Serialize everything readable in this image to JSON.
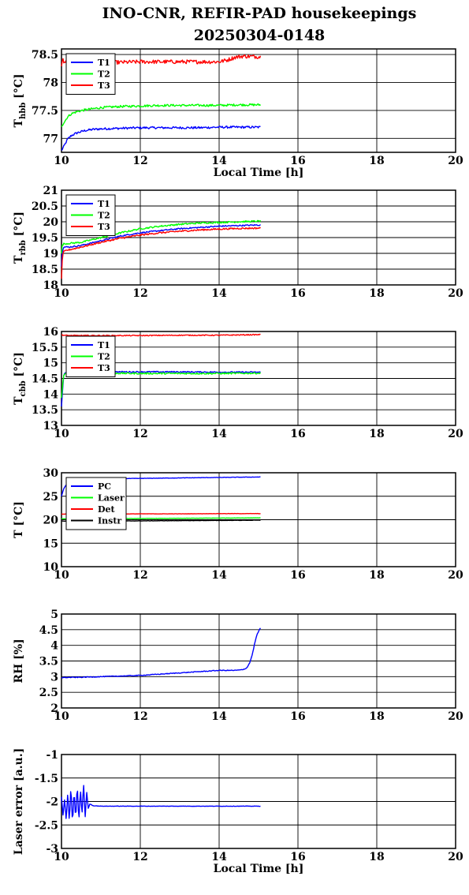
{
  "figure": {
    "title_line1": "INO-CNR, REFIR-PAD housekeepings",
    "title_line2": "20250304-0148"
  },
  "chart_data": [
    {
      "type": "line",
      "xlabel": "Local Time [h]",
      "ylabel": "T",
      "ylabel_sub": "hbb",
      "ylabel_unit": "[°C]",
      "xlim": [
        10,
        20
      ],
      "ylim": [
        76.75,
        78.6
      ],
      "xticks": [
        10,
        12,
        14,
        16,
        18,
        20
      ],
      "yticks": [
        77,
        77.5,
        78,
        78.5
      ],
      "grid": true,
      "legend": "top-left",
      "series": [
        {
          "name": "T1",
          "color": "#0000ff",
          "x": [
            10.0,
            10.08,
            10.15,
            10.25,
            10.4,
            10.6,
            10.8,
            11.0,
            11.5,
            12.0,
            12.5,
            13.0,
            13.5,
            14.0,
            14.5,
            15.05
          ],
          "y": [
            76.78,
            76.88,
            76.98,
            77.05,
            77.1,
            77.14,
            77.16,
            77.17,
            77.18,
            77.19,
            77.19,
            77.19,
            77.19,
            77.2,
            77.2,
            77.2
          ],
          "noise": 0.02
        },
        {
          "name": "T2",
          "color": "#00ff00",
          "x": [
            10.0,
            10.08,
            10.15,
            10.25,
            10.4,
            10.6,
            10.8,
            11.0,
            11.5,
            12.0,
            12.5,
            13.0,
            13.5,
            14.0,
            14.5,
            15.05
          ],
          "y": [
            77.22,
            77.3,
            77.38,
            77.44,
            77.48,
            77.51,
            77.53,
            77.55,
            77.57,
            77.58,
            77.59,
            77.59,
            77.59,
            77.59,
            77.6,
            77.6
          ],
          "noise": 0.02
        },
        {
          "name": "T3",
          "color": "#ff0000",
          "x": [
            10.0,
            10.03,
            10.06,
            10.15,
            10.5,
            11.0,
            11.5,
            12.0,
            12.5,
            13.0,
            13.5,
            14.0,
            14.2,
            14.4,
            14.6,
            15.05
          ],
          "y": [
            78.28,
            78.44,
            78.38,
            78.36,
            78.36,
            78.36,
            78.36,
            78.37,
            78.37,
            78.37,
            78.37,
            78.37,
            78.4,
            78.45,
            78.47,
            78.46
          ],
          "noise": 0.035
        }
      ]
    },
    {
      "type": "line",
      "xlabel": "",
      "ylabel": "T",
      "ylabel_sub": "rbb",
      "ylabel_unit": "[°C]",
      "xlim": [
        10,
        20
      ],
      "ylim": [
        18,
        21
      ],
      "xticks": [
        10,
        12,
        14,
        16,
        18,
        20
      ],
      "yticks": [
        18,
        18.5,
        19,
        19.5,
        20,
        20.5,
        21
      ],
      "grid": true,
      "legend": "top-left",
      "series": [
        {
          "name": "T1",
          "color": "#0000ff",
          "x": [
            10.0,
            10.02,
            10.05,
            10.2,
            10.5,
            11.0,
            11.5,
            12.0,
            12.5,
            13.0,
            13.5,
            14.0,
            14.5,
            15.05
          ],
          "y": [
            18.6,
            19.05,
            19.2,
            19.2,
            19.25,
            19.4,
            19.55,
            19.65,
            19.72,
            19.78,
            19.82,
            19.86,
            19.88,
            19.9
          ],
          "noise": 0.02
        },
        {
          "name": "T2",
          "color": "#00ff00",
          "x": [
            10.0,
            10.02,
            10.05,
            10.5,
            11.0,
            11.5,
            12.0,
            12.5,
            13.0,
            13.5,
            14.0,
            14.5,
            15.05
          ],
          "y": [
            19.0,
            19.25,
            19.3,
            19.35,
            19.5,
            19.65,
            19.78,
            19.86,
            19.92,
            19.96,
            19.98,
            20.0,
            20.02
          ],
          "noise": 0.025
        },
        {
          "name": "T3",
          "color": "#ff0000",
          "x": [
            10.0,
            10.02,
            10.05,
            10.15,
            10.5,
            11.0,
            11.5,
            12.0,
            12.5,
            13.0,
            13.5,
            14.0,
            14.5,
            15.05
          ],
          "y": [
            18.2,
            18.8,
            19.05,
            19.1,
            19.2,
            19.35,
            19.48,
            19.58,
            19.65,
            19.7,
            19.74,
            19.77,
            19.79,
            19.8
          ],
          "noise": 0.025
        }
      ]
    },
    {
      "type": "line",
      "xlabel": "",
      "ylabel": "T",
      "ylabel_sub": "cbb",
      "ylabel_unit": "[°C]",
      "xlim": [
        10,
        20
      ],
      "ylim": [
        13,
        16
      ],
      "xticks": [
        10,
        12,
        14,
        16,
        18,
        20
      ],
      "yticks": [
        13,
        13.5,
        14,
        14.5,
        15,
        15.5,
        16
      ],
      "grid": true,
      "legend": "top-left",
      "series": [
        {
          "name": "T1",
          "color": "#0000ff",
          "x": [
            10.0,
            10.03,
            10.06,
            10.1,
            10.2,
            10.5,
            11.0,
            12.0,
            13.0,
            14.0,
            15.05
          ],
          "y": [
            13.6,
            14.2,
            14.6,
            14.7,
            14.72,
            14.72,
            14.71,
            14.71,
            14.71,
            14.7,
            14.7
          ],
          "noise": 0.02
        },
        {
          "name": "T2",
          "color": "#00ff00",
          "x": [
            10.0,
            10.03,
            10.06,
            10.1,
            10.2,
            10.5,
            11.0,
            12.0,
            13.0,
            14.0,
            15.05
          ],
          "y": [
            13.9,
            14.3,
            14.6,
            14.66,
            14.68,
            14.68,
            14.67,
            14.66,
            14.66,
            14.66,
            14.67
          ],
          "noise": 0.025
        },
        {
          "name": "T3",
          "color": "#ff0000",
          "x": [
            10.0,
            10.05,
            10.2,
            11.0,
            12.0,
            13.0,
            14.0,
            15.05
          ],
          "y": [
            15.9,
            15.88,
            15.87,
            15.87,
            15.87,
            15.88,
            15.88,
            15.9
          ],
          "noise": 0.015
        }
      ]
    },
    {
      "type": "line",
      "xlabel": "",
      "ylabel": "T",
      "ylabel_sub": "",
      "ylabel_unit": "[°C]",
      "xlim": [
        10,
        20
      ],
      "ylim": [
        10,
        30
      ],
      "xticks": [
        10,
        12,
        14,
        16,
        18,
        20
      ],
      "yticks": [
        10,
        15,
        20,
        25,
        30
      ],
      "grid": true,
      "legend": "top-left",
      "series": [
        {
          "name": "PC",
          "color": "#0000ff",
          "x": [
            10.0,
            10.05,
            10.15,
            10.3,
            10.5,
            11.0,
            12.0,
            13.0,
            14.0,
            15.05
          ],
          "y": [
            25.0,
            26.5,
            27.8,
            28.4,
            28.6,
            28.7,
            28.8,
            28.9,
            29.0,
            29.1
          ],
          "noise": 0.04
        },
        {
          "name": "Laser",
          "color": "#00ff00",
          "x": [
            10.0,
            11.0,
            12.0,
            13.0,
            14.0,
            15.05
          ],
          "y": [
            20.2,
            20.2,
            20.25,
            20.3,
            20.35,
            20.4
          ],
          "noise": 0.03
        },
        {
          "name": "Det",
          "color": "#ff0000",
          "x": [
            10.0,
            11.0,
            12.0,
            13.0,
            14.0,
            15.05
          ],
          "y": [
            21.2,
            21.2,
            21.25,
            21.25,
            21.3,
            21.3
          ],
          "noise": 0.03
        },
        {
          "name": "Instr",
          "color": "#000000",
          "x": [
            10.0,
            11.0,
            12.0,
            13.0,
            14.0,
            15.05
          ],
          "y": [
            19.7,
            19.7,
            19.75,
            19.8,
            19.85,
            19.9
          ],
          "noise": 0.03
        }
      ]
    },
    {
      "type": "line",
      "xlabel": "",
      "ylabel": "RH [%]",
      "ylabel_sub": "",
      "ylabel_unit": "",
      "xlim": [
        10,
        20
      ],
      "ylim": [
        2,
        5
      ],
      "xticks": [
        10,
        12,
        14,
        16,
        18,
        20
      ],
      "yticks": [
        2,
        2.5,
        3,
        3.5,
        4,
        4.5,
        5
      ],
      "grid": true,
      "legend": "none",
      "series": [
        {
          "name": "",
          "color": "#0000ff",
          "x": [
            10.0,
            10.5,
            11.0,
            11.5,
            12.0,
            12.5,
            13.0,
            13.5,
            14.0,
            14.4,
            14.6,
            14.7,
            14.78,
            14.85,
            14.9,
            14.95,
            15.0,
            15.05
          ],
          "y": [
            2.97,
            2.98,
            3.0,
            3.02,
            3.04,
            3.08,
            3.12,
            3.16,
            3.2,
            3.2,
            3.22,
            3.28,
            3.45,
            3.75,
            4.05,
            4.3,
            4.45,
            4.55
          ],
          "noise": 0.012
        }
      ]
    },
    {
      "type": "line",
      "xlabel": "Local Time [h]",
      "ylabel": "Laser error [a.u.]",
      "ylabel_sub": "",
      "ylabel_unit": "",
      "xlim": [
        10,
        20
      ],
      "ylim": [
        -3,
        -1
      ],
      "xticks": [
        10,
        12,
        14,
        16,
        18,
        20
      ],
      "yticks": [
        -3,
        -2.5,
        -2,
        -1.5,
        -1
      ],
      "grid": true,
      "legend": "none",
      "series": [
        {
          "name": "",
          "color": "#0000ff",
          "x": [
            10.0,
            10.04,
            10.08,
            10.12,
            10.16,
            10.2,
            10.24,
            10.28,
            10.32,
            10.36,
            10.4,
            10.44,
            10.48,
            10.52,
            10.56,
            10.6,
            10.64,
            10.68,
            10.72,
            10.8,
            11.0,
            11.5,
            12.0,
            12.5,
            13.0,
            13.5,
            14.0,
            14.5,
            15.05
          ],
          "y": [
            -1.9,
            -2.3,
            -1.95,
            -2.4,
            -1.8,
            -2.45,
            -1.65,
            -2.5,
            -1.75,
            -2.4,
            -1.62,
            -2.45,
            -1.72,
            -2.3,
            -1.6,
            -2.35,
            -1.8,
            -2.15,
            -2.05,
            -2.09,
            -2.1,
            -2.1,
            -2.1,
            -2.1,
            -2.1,
            -2.1,
            -2.1,
            -2.1,
            -2.1
          ],
          "noise": 0.004
        }
      ]
    }
  ]
}
